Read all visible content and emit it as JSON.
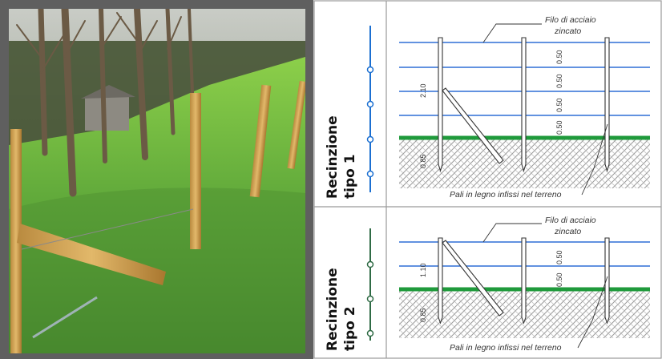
{
  "photo": {
    "description_icon": "photo-of-wooden-fence-posts-on-grassy-slope"
  },
  "fence_type_1": {
    "title_line1": "Recinzione",
    "title_line2": "tipo 1",
    "wire_label_line1": "Filo di acciaio",
    "wire_label_line2": "zincato",
    "post_label": "Pali in legno infissi nel terreno",
    "dim_height": "2.10",
    "dim_below": "0.85",
    "dim_spacings": [
      "0.50",
      "0.50",
      "0.50",
      "0.50"
    ]
  },
  "fence_type_2": {
    "title_line1": "Recinzione",
    "title_line2": "tipo 2",
    "wire_label_line1": "Filo di acciaio",
    "wire_label_line2": "zincato",
    "post_label": "Pali in legno infissi nel terreno",
    "dim_height": "1.10",
    "dim_below": "0.85",
    "dim_spacings": [
      "0.50",
      "0.50"
    ]
  },
  "colors": {
    "wire_blue": "#2f6fd6",
    "grass_green": "#1f9a3b",
    "type1_accent": "#1b6fd1",
    "type2_accent": "#2f6b45",
    "ground_hatch": "#9a9a9a"
  }
}
